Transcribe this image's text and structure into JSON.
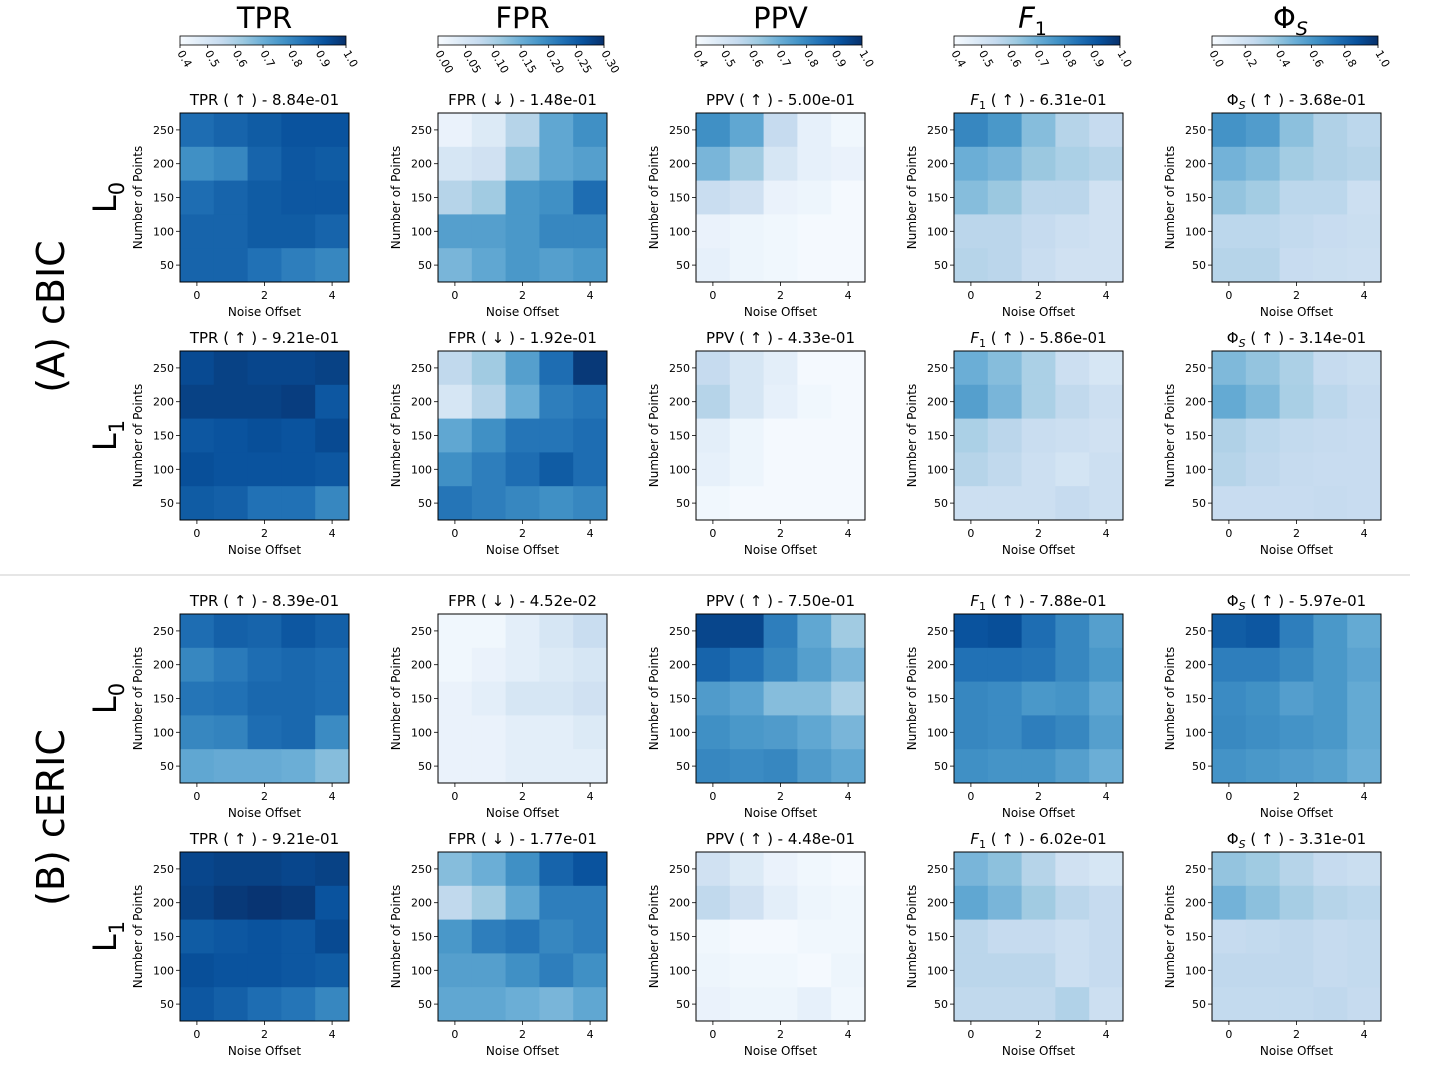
{
  "column_headers": [
    {
      "base": "TPR",
      "sub": ""
    },
    {
      "base": "FPR",
      "sub": ""
    },
    {
      "base": "PPV",
      "sub": ""
    },
    {
      "base": "F",
      "sub": "1",
      "italic": true
    },
    {
      "base": "Φ",
      "sub": "S",
      "italic_sub": true
    }
  ],
  "colorbars": [
    {
      "ticks": [
        "0.4",
        "0.5",
        "0.6",
        "0.7",
        "0.8",
        "0.9",
        "1.0"
      ]
    },
    {
      "ticks": [
        "0.00",
        "0.05",
        "0.10",
        "0.15",
        "0.20",
        "0.25",
        "0.30"
      ]
    },
    {
      "ticks": [
        "0.4",
        "0.5",
        "0.6",
        "0.7",
        "0.8",
        "0.9",
        "1.0"
      ]
    },
    {
      "ticks": [
        "0.4",
        "0.5",
        "0.6",
        "0.7",
        "0.8",
        "0.9",
        "1.0"
      ]
    },
    {
      "ticks": [
        "0.0",
        "0.2",
        "0.4",
        "0.6",
        "0.8",
        "1.0"
      ]
    }
  ],
  "sections": [
    {
      "label": "(A) cBIC",
      "rows": [
        {
          "base": "L",
          "sub": "0"
        },
        {
          "base": "L",
          "sub": "1"
        }
      ]
    },
    {
      "label": "(B) cERIC",
      "rows": [
        {
          "base": "L",
          "sub": "0"
        },
        {
          "base": "L",
          "sub": "1"
        }
      ]
    }
  ],
  "axis": {
    "xlabel": "Noise Offset",
    "ylabel": "Number of Points",
    "xticks": [
      "0",
      "2",
      "4"
    ],
    "yticks": [
      "250",
      "200",
      "150",
      "100",
      "50"
    ]
  },
  "colors": {
    "low": "#f7fbff",
    "high": "#08306b",
    "divider": "#cccccc"
  },
  "chart_data": {
    "type": "heatmap",
    "colormap": "Blues",
    "x_values": [
      0,
      1,
      2,
      3,
      4
    ],
    "y_values": [
      250,
      200,
      150,
      100,
      50
    ],
    "metrics": [
      {
        "name": "TPR",
        "direction": "↑",
        "vmin": 0.4,
        "vmax": 1.0
      },
      {
        "name": "FPR",
        "direction": "↓",
        "vmin": 0.0,
        "vmax": 0.3
      },
      {
        "name": "PPV",
        "direction": "↑",
        "vmin": 0.4,
        "vmax": 1.0
      },
      {
        "name": "F1",
        "direction": "↑",
        "vmin": 0.4,
        "vmax": 1.0
      },
      {
        "name": "ΦS",
        "direction": "↑",
        "vmin": 0.0,
        "vmax": 1.0
      }
    ],
    "panels": [
      [
        {
          "metric": "TPR",
          "score": "8.84e-01",
          "grid": [
            [
              0.86,
              0.88,
              0.9,
              0.92,
              0.92
            ],
            [
              0.78,
              0.8,
              0.88,
              0.91,
              0.9
            ],
            [
              0.86,
              0.88,
              0.9,
              0.91,
              0.91
            ],
            [
              0.88,
              0.88,
              0.9,
              0.9,
              0.88
            ],
            [
              0.88,
              0.88,
              0.85,
              0.82,
              0.8
            ]
          ]
        },
        {
          "metric": "FPR",
          "score": "1.48e-01",
          "grid": [
            [
              0.02,
              0.04,
              0.09,
              0.16,
              0.19
            ],
            [
              0.05,
              0.06,
              0.12,
              0.16,
              0.17
            ],
            [
              0.09,
              0.11,
              0.18,
              0.19,
              0.23
            ],
            [
              0.17,
              0.17,
              0.18,
              0.2,
              0.2
            ],
            [
              0.14,
              0.16,
              0.18,
              0.17,
              0.18
            ]
          ]
        },
        {
          "metric": "PPV",
          "score": "5.00e-01",
          "grid": [
            [
              0.78,
              0.72,
              0.55,
              0.45,
              0.42
            ],
            [
              0.68,
              0.62,
              0.5,
              0.45,
              0.44
            ],
            [
              0.54,
              0.52,
              0.44,
              0.43,
              0.41
            ],
            [
              0.44,
              0.43,
              0.42,
              0.41,
              0.41
            ],
            [
              0.45,
              0.43,
              0.42,
              0.41,
              0.41
            ]
          ]
        },
        {
          "metric": "F1",
          "score": "6.31e-01",
          "grid": [
            [
              0.8,
              0.76,
              0.66,
              0.58,
              0.55
            ],
            [
              0.7,
              0.68,
              0.63,
              0.6,
              0.58
            ],
            [
              0.66,
              0.63,
              0.57,
              0.57,
              0.52
            ],
            [
              0.57,
              0.57,
              0.55,
              0.53,
              0.52
            ],
            [
              0.58,
              0.57,
              0.54,
              0.52,
              0.52
            ]
          ]
        },
        {
          "metric": "ΦS",
          "score": "3.68e-01",
          "grid": [
            [
              0.62,
              0.58,
              0.42,
              0.32,
              0.28
            ],
            [
              0.48,
              0.44,
              0.36,
              0.32,
              0.3
            ],
            [
              0.4,
              0.36,
              0.28,
              0.28,
              0.22
            ],
            [
              0.28,
              0.28,
              0.26,
              0.24,
              0.23
            ],
            [
              0.3,
              0.3,
              0.24,
              0.23,
              0.22
            ]
          ]
        }
      ],
      [
        {
          "metric": "TPR",
          "score": "9.21e-01",
          "grid": [
            [
              0.94,
              0.96,
              0.95,
              0.95,
              0.96
            ],
            [
              0.96,
              0.96,
              0.96,
              0.97,
              0.91
            ],
            [
              0.91,
              0.92,
              0.93,
              0.92,
              0.94
            ],
            [
              0.93,
              0.92,
              0.92,
              0.92,
              0.91
            ],
            [
              0.9,
              0.89,
              0.85,
              0.85,
              0.8
            ]
          ]
        },
        {
          "metric": "FPR",
          "score": "1.92e-01",
          "grid": [
            [
              0.08,
              0.11,
              0.17,
              0.23,
              0.29
            ],
            [
              0.05,
              0.09,
              0.15,
              0.21,
              0.22
            ],
            [
              0.16,
              0.19,
              0.22,
              0.22,
              0.23
            ],
            [
              0.19,
              0.21,
              0.23,
              0.25,
              0.23
            ],
            [
              0.22,
              0.21,
              0.2,
              0.19,
              0.2
            ]
          ]
        },
        {
          "metric": "PPV",
          "score": "4.33e-01",
          "grid": [
            [
              0.55,
              0.5,
              0.46,
              0.41,
              0.41
            ],
            [
              0.58,
              0.5,
              0.45,
              0.42,
              0.41
            ],
            [
              0.46,
              0.43,
              0.41,
              0.41,
              0.41
            ],
            [
              0.45,
              0.43,
              0.41,
              0.41,
              0.41
            ],
            [
              0.42,
              0.41,
              0.41,
              0.41,
              0.41
            ]
          ]
        },
        {
          "metric": "F1",
          "score": "5.86e-01",
          "grid": [
            [
              0.7,
              0.66,
              0.6,
              0.53,
              0.5
            ],
            [
              0.74,
              0.68,
              0.6,
              0.56,
              0.53
            ],
            [
              0.6,
              0.57,
              0.54,
              0.53,
              0.52
            ],
            [
              0.58,
              0.56,
              0.53,
              0.51,
              0.53
            ],
            [
              0.53,
              0.53,
              0.53,
              0.55,
              0.53
            ]
          ]
        },
        {
          "metric": "ΦS",
          "score": "3.14e-01",
          "grid": [
            [
              0.45,
              0.4,
              0.33,
              0.25,
              0.23
            ],
            [
              0.52,
              0.45,
              0.34,
              0.28,
              0.25
            ],
            [
              0.32,
              0.28,
              0.26,
              0.25,
              0.24
            ],
            [
              0.3,
              0.27,
              0.25,
              0.24,
              0.24
            ],
            [
              0.24,
              0.24,
              0.24,
              0.25,
              0.24
            ]
          ]
        }
      ],
      [
        {
          "metric": "TPR",
          "score": "8.39e-01",
          "grid": [
            [
              0.86,
              0.89,
              0.88,
              0.91,
              0.89
            ],
            [
              0.8,
              0.83,
              0.86,
              0.87,
              0.86
            ],
            [
              0.84,
              0.85,
              0.87,
              0.87,
              0.86
            ],
            [
              0.8,
              0.81,
              0.86,
              0.87,
              0.79
            ],
            [
              0.72,
              0.71,
              0.71,
              0.7,
              0.66
            ]
          ]
        },
        {
          "metric": "FPR",
          "score": "4.52e-02",
          "grid": [
            [
              0.01,
              0.01,
              0.03,
              0.05,
              0.07
            ],
            [
              0.01,
              0.02,
              0.03,
              0.04,
              0.05
            ],
            [
              0.02,
              0.03,
              0.05,
              0.05,
              0.06
            ],
            [
              0.02,
              0.02,
              0.03,
              0.03,
              0.04
            ],
            [
              0.02,
              0.02,
              0.03,
              0.03,
              0.03
            ]
          ]
        },
        {
          "metric": "PPV",
          "score": "7.50e-01",
          "grid": [
            [
              0.95,
              0.95,
              0.82,
              0.72,
              0.62
            ],
            [
              0.88,
              0.85,
              0.8,
              0.74,
              0.68
            ],
            [
              0.75,
              0.73,
              0.66,
              0.66,
              0.6
            ],
            [
              0.78,
              0.76,
              0.75,
              0.72,
              0.68
            ],
            [
              0.8,
              0.79,
              0.8,
              0.75,
              0.72
            ]
          ]
        },
        {
          "metric": "F1",
          "score": "7.88e-01",
          "grid": [
            [
              0.92,
              0.93,
              0.86,
              0.8,
              0.74
            ],
            [
              0.85,
              0.85,
              0.84,
              0.8,
              0.76
            ],
            [
              0.8,
              0.79,
              0.76,
              0.77,
              0.72
            ],
            [
              0.8,
              0.79,
              0.82,
              0.8,
              0.74
            ],
            [
              0.78,
              0.77,
              0.77,
              0.74,
              0.7
            ]
          ]
        },
        {
          "metric": "ΦS",
          "score": "5.97e-01",
          "grid": [
            [
              0.83,
              0.85,
              0.7,
              0.6,
              0.52
            ],
            [
              0.7,
              0.7,
              0.66,
              0.6,
              0.55
            ],
            [
              0.65,
              0.63,
              0.57,
              0.6,
              0.52
            ],
            [
              0.66,
              0.64,
              0.62,
              0.6,
              0.52
            ],
            [
              0.62,
              0.6,
              0.58,
              0.56,
              0.5
            ]
          ]
        }
      ],
      [
        {
          "metric": "TPR",
          "score": "9.21e-01",
          "grid": [
            [
              0.95,
              0.96,
              0.96,
              0.95,
              0.96
            ],
            [
              0.96,
              0.98,
              0.99,
              0.98,
              0.92
            ],
            [
              0.9,
              0.91,
              0.92,
              0.91,
              0.94
            ],
            [
              0.93,
              0.92,
              0.92,
              0.91,
              0.9
            ],
            [
              0.91,
              0.89,
              0.86,
              0.84,
              0.8
            ]
          ]
        },
        {
          "metric": "FPR",
          "score": "1.77e-01",
          "grid": [
            [
              0.13,
              0.15,
              0.19,
              0.24,
              0.26
            ],
            [
              0.08,
              0.11,
              0.16,
              0.21,
              0.21
            ],
            [
              0.18,
              0.21,
              0.22,
              0.2,
              0.21
            ],
            [
              0.17,
              0.17,
              0.19,
              0.21,
              0.19
            ],
            [
              0.16,
              0.16,
              0.15,
              0.14,
              0.16
            ]
          ]
        },
        {
          "metric": "PPV",
          "score": "4.48e-01",
          "grid": [
            [
              0.52,
              0.48,
              0.44,
              0.42,
              0.41
            ],
            [
              0.56,
              0.52,
              0.46,
              0.43,
              0.42
            ],
            [
              0.42,
              0.41,
              0.41,
              0.42,
              0.42
            ],
            [
              0.43,
              0.42,
              0.42,
              0.41,
              0.43
            ],
            [
              0.44,
              0.43,
              0.43,
              0.45,
              0.42
            ]
          ]
        },
        {
          "metric": "F1",
          "score": "6.02e-01",
          "grid": [
            [
              0.68,
              0.65,
              0.58,
              0.52,
              0.5
            ],
            [
              0.72,
              0.68,
              0.62,
              0.57,
              0.55
            ],
            [
              0.57,
              0.55,
              0.55,
              0.53,
              0.55
            ],
            [
              0.57,
              0.57,
              0.57,
              0.53,
              0.55
            ],
            [
              0.56,
              0.56,
              0.56,
              0.59,
              0.53
            ]
          ]
        },
        {
          "metric": "ΦS",
          "score": "3.31e-01",
          "grid": [
            [
              0.4,
              0.37,
              0.3,
              0.25,
              0.23
            ],
            [
              0.48,
              0.42,
              0.35,
              0.3,
              0.28
            ],
            [
              0.25,
              0.26,
              0.27,
              0.25,
              0.26
            ],
            [
              0.27,
              0.27,
              0.27,
              0.25,
              0.26
            ],
            [
              0.26,
              0.26,
              0.26,
              0.27,
              0.25
            ]
          ]
        }
      ]
    ]
  }
}
